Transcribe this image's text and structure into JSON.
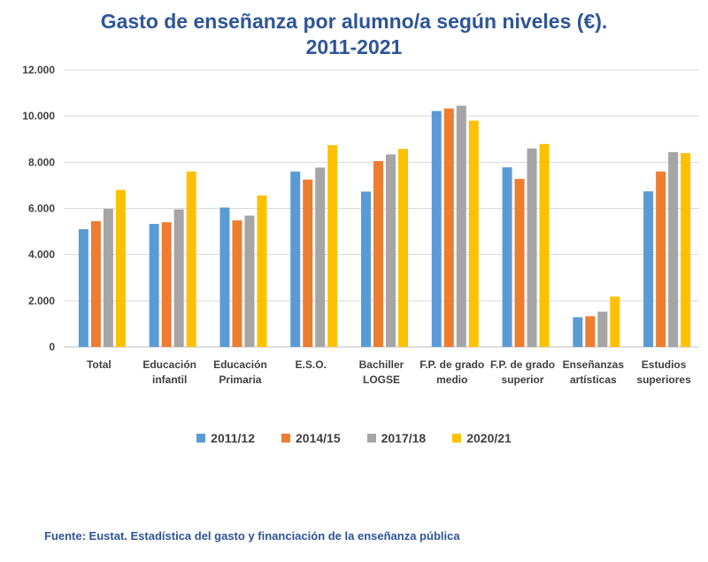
{
  "chart_data": {
    "type": "bar",
    "title": "Gasto de enseñanza por alumno/a según niveles (€).",
    "subtitle": "2011-2021",
    "categories": [
      [
        "Total"
      ],
      [
        "Educación",
        "infantil"
      ],
      [
        "Educación",
        "Primaria"
      ],
      [
        "E.S.O."
      ],
      [
        "Bachiller",
        "LOGSE"
      ],
      [
        "F.P. de grado",
        "medio"
      ],
      [
        "F.P. de grado",
        "superior"
      ],
      [
        "Enseñanzas",
        "artísticas"
      ],
      [
        "Estudios",
        "superiores"
      ]
    ],
    "series": [
      {
        "name": "2011/12",
        "color": "#5b9bd5",
        "values": [
          5100,
          5330,
          6040,
          7600,
          6730,
          10220,
          7780,
          1290,
          6740
        ]
      },
      {
        "name": "2014/15",
        "color": "#ed7d31",
        "values": [
          5450,
          5400,
          5480,
          7250,
          8050,
          10330,
          7280,
          1330,
          7600
        ]
      },
      {
        "name": "2017/18",
        "color": "#a5a5a5",
        "values": [
          5980,
          5960,
          5690,
          7770,
          8340,
          10450,
          8600,
          1530,
          8440
        ]
      },
      {
        "name": "2020/21",
        "color": "#ffc000",
        "values": [
          6800,
          7600,
          6560,
          8740,
          8580,
          9800,
          8790,
          2180,
          8400
        ]
      }
    ],
    "yticks": [
      "0",
      "2.000",
      "4.000",
      "6.000",
      "8.000",
      "10.000",
      "12.000"
    ],
    "ylim": [
      0,
      12000
    ],
    "grid": true,
    "legend_position": "bottom"
  },
  "source": "Fuente: Eustat. Estadística del gasto y financiación de la enseñanza pública"
}
